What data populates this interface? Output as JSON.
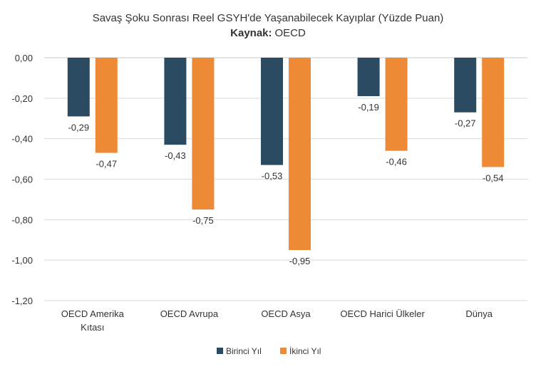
{
  "chart_data": {
    "type": "bar",
    "title": "Savaş Şoku Sonrası Reel GSYH'de Yaşanabilecek Kayıplar (Yüzde Puan)",
    "source_label": "Kaynak:",
    "source_value": "OECD",
    "categories": [
      [
        "OECD Amerika",
        "Kıtası"
      ],
      [
        "OECD Avrupa"
      ],
      [
        "OECD Asya"
      ],
      [
        "OECD Harici Ülkeler"
      ],
      [
        "Dünya"
      ]
    ],
    "series": [
      {
        "name": "Birinci Yıl",
        "color": "#2b4b63",
        "values": [
          -0.29,
          -0.43,
          -0.53,
          -0.19,
          -0.27
        ],
        "labels": [
          "-0,29",
          "-0,43",
          "-0,53",
          "-0,19",
          "-0,27"
        ]
      },
      {
        "name": "İkinci Yıl",
        "color": "#ee8a35",
        "values": [
          -0.47,
          -0.75,
          -0.95,
          -0.46,
          -0.54
        ],
        "labels": [
          "-0,47",
          "-0,75",
          "-0,95",
          "-0,46",
          "-0,54"
        ]
      }
    ],
    "ylim": [
      -1.2,
      0
    ],
    "y_ticks": [
      {
        "value": 0,
        "label": "0,00"
      },
      {
        "value": -0.2,
        "label": "-0,20"
      },
      {
        "value": -0.4,
        "label": "-0,40"
      },
      {
        "value": -0.6,
        "label": "-0,60"
      },
      {
        "value": -0.8,
        "label": "-0,80"
      },
      {
        "value": -1.0,
        "label": "-1,00"
      },
      {
        "value": -1.2,
        "label": "-1,20"
      }
    ],
    "grid": true,
    "legend_position": "bottom-center"
  }
}
